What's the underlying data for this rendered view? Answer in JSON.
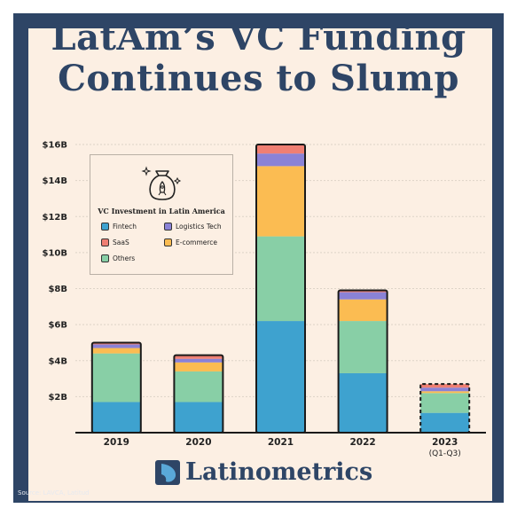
{
  "title": {
    "line1": "LatAm’s VC Funding",
    "line2": "Continues to Slump"
  },
  "colors": {
    "frame": "#2e4566",
    "panel": "#fcefe3",
    "fintech": "#3ea2cf",
    "logistics_tech": "#8a82d6",
    "saas": "#ef7f73",
    "ecommerce": "#fbbc52",
    "others": "#88cfa6"
  },
  "legend": {
    "title": "VC Investment in Latin America",
    "items": [
      "Fintech",
      "Logistics Tech",
      "SaaS",
      "E-commerce",
      "Others"
    ],
    "icon": "money-bag-rocket-icon"
  },
  "chart_data": {
    "type": "bar",
    "stacked": true,
    "categories": [
      "2019",
      "2020",
      "2021",
      "2022",
      "2023"
    ],
    "category_sublabels": [
      "",
      "",
      "",
      "",
      "(Q1-Q3)"
    ],
    "series": [
      {
        "name": "Fintech",
        "values": [
          1.7,
          1.7,
          6.2,
          3.3,
          1.1
        ]
      },
      {
        "name": "Others",
        "values": [
          2.7,
          1.7,
          4.7,
          2.9,
          1.1
        ]
      },
      {
        "name": "E-commerce",
        "values": [
          0.3,
          0.5,
          3.9,
          1.2,
          0.1
        ]
      },
      {
        "name": "Logistics Tech",
        "values": [
          0.2,
          0.2,
          0.7,
          0.4,
          0.2
        ]
      },
      {
        "name": "SaaS",
        "values": [
          0.1,
          0.2,
          0.5,
          0.1,
          0.2
        ]
      }
    ],
    "ylim": [
      0,
      16
    ],
    "yticks": [
      2,
      4,
      6,
      8,
      10,
      12,
      14,
      16
    ],
    "ytick_labels": [
      "$2B",
      "$4B",
      "$6B",
      "$8B",
      "$10B",
      "$12B",
      "$14B",
      "$16B"
    ],
    "grid": true,
    "partial_year_dashed": "2023",
    "legend_position": "top-left"
  },
  "brand": {
    "name": "Latinometrics",
    "icon": "latinometrics-logo-icon"
  },
  "source": "Source: LAVCA, Latitud"
}
